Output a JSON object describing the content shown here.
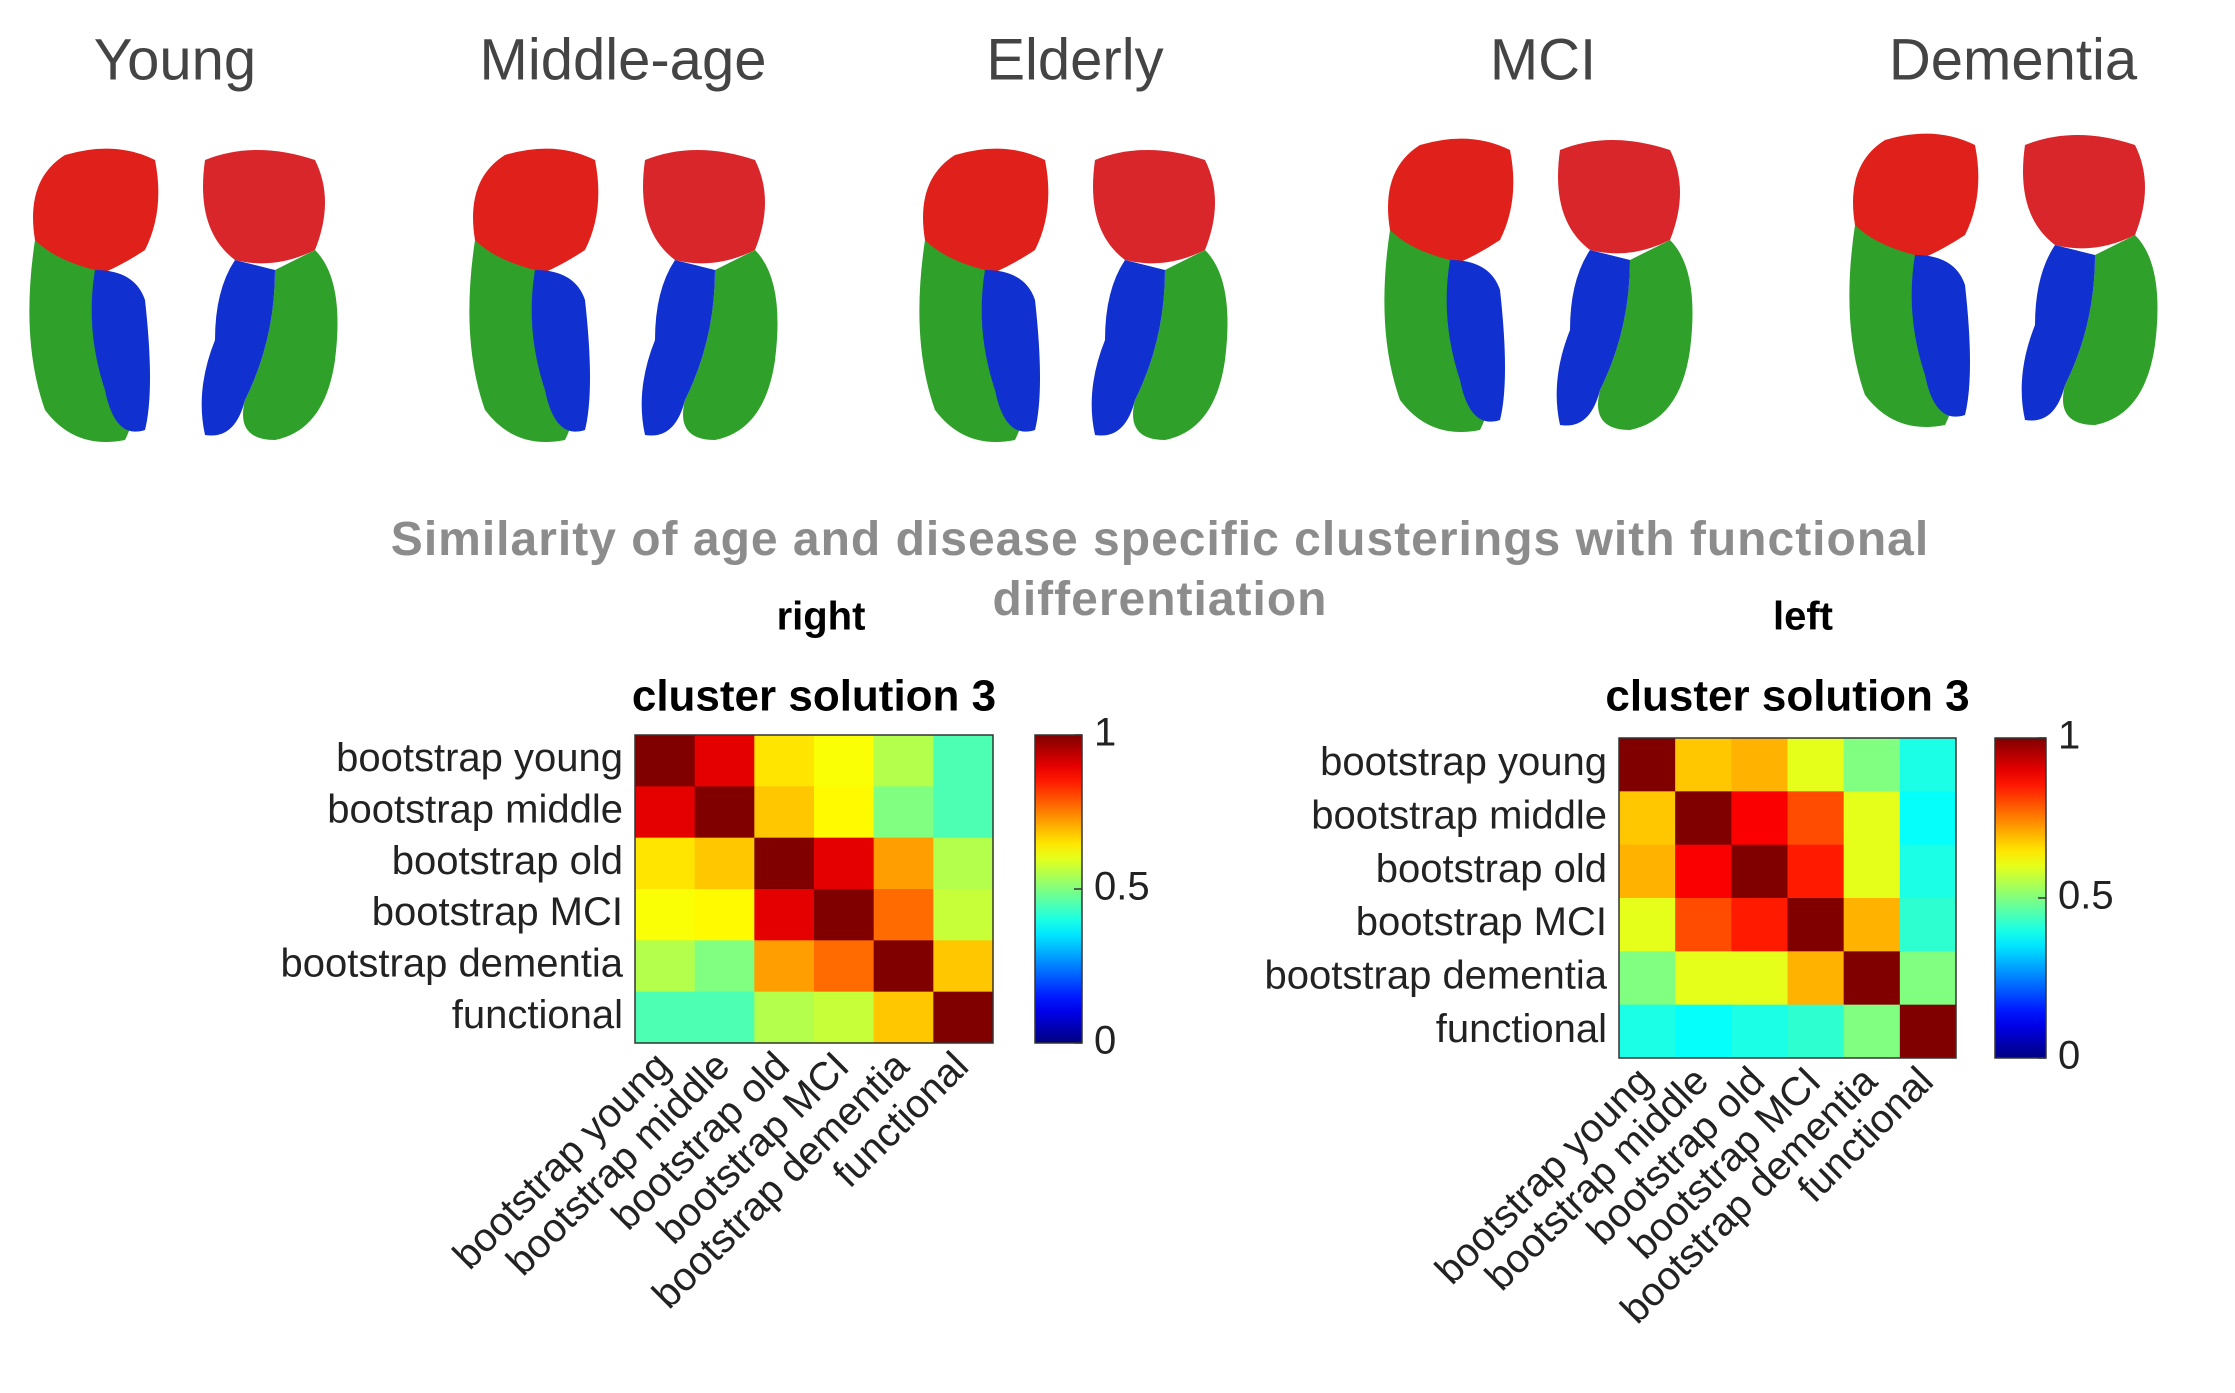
{
  "title": "Similarity of age and disease specific clusterings with functional differentiation",
  "panels": [
    "Young",
    "Middle-age",
    "Elderly",
    "MCI",
    "Dementia"
  ],
  "chart_data": [
    {
      "type": "heatmap",
      "subtitle": "right",
      "title": "cluster solution 3",
      "categories": [
        "bootstrap young",
        "bootstrap middle",
        "bootstrap old",
        "bootstrap MCI",
        "bootstrap dementia",
        "functional"
      ],
      "values": [
        [
          1,
          0.9,
          0.65,
          0.62,
          0.55,
          0.45
        ],
        [
          0.9,
          1,
          0.68,
          0.63,
          0.5,
          0.45
        ],
        [
          0.65,
          0.68,
          1,
          0.9,
          0.72,
          0.55
        ],
        [
          0.62,
          0.63,
          0.9,
          1,
          0.77,
          0.57
        ],
        [
          0.55,
          0.5,
          0.72,
          0.77,
          1,
          0.68
        ],
        [
          0.45,
          0.45,
          0.55,
          0.57,
          0.68,
          1
        ]
      ],
      "colormap": "jet",
      "clim": [
        0,
        1
      ],
      "cticks": [
        0,
        0.5,
        1
      ]
    },
    {
      "type": "heatmap",
      "subtitle": "left",
      "title": "cluster solution 3",
      "categories": [
        "bootstrap young",
        "bootstrap middle",
        "bootstrap old",
        "bootstrap MCI",
        "bootstrap dementia",
        "functional"
      ],
      "values": [
        [
          1,
          0.68,
          0.7,
          0.6,
          0.5,
          0.4
        ],
        [
          0.68,
          1,
          0.88,
          0.8,
          0.6,
          0.38
        ],
        [
          0.7,
          0.88,
          1,
          0.85,
          0.6,
          0.4
        ],
        [
          0.6,
          0.8,
          0.85,
          1,
          0.7,
          0.42
        ],
        [
          0.5,
          0.6,
          0.6,
          0.7,
          1,
          0.5
        ],
        [
          0.4,
          0.38,
          0.4,
          0.42,
          0.5,
          1
        ]
      ],
      "colormap": "jet",
      "clim": [
        0,
        1
      ],
      "cticks": [
        0,
        0.5,
        1
      ]
    }
  ]
}
